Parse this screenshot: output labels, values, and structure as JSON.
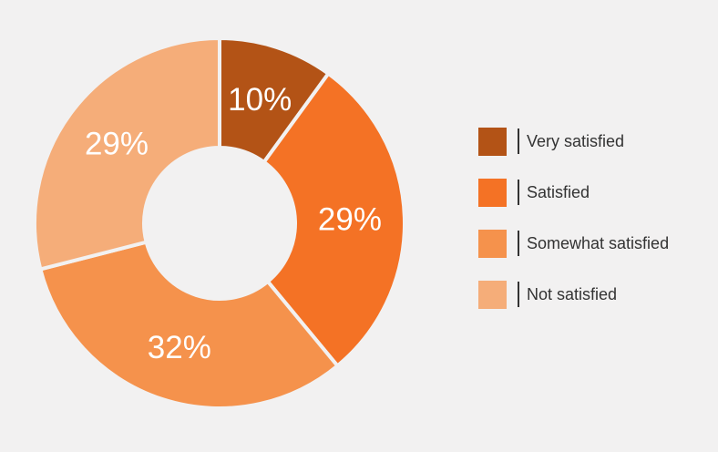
{
  "chart_data": {
    "type": "pie",
    "variant": "donut",
    "categories": [
      "Very satisfied",
      "Satisfied",
      "Somewhat satisfied",
      "Not satisfied"
    ],
    "values": [
      10,
      29,
      32,
      29
    ],
    "labels": [
      "10%",
      "29%",
      "32%",
      "29%"
    ],
    "colors": [
      "#b35316",
      "#f47225",
      "#f5924c",
      "#f5ad79"
    ],
    "legend_position": "right"
  },
  "legend": {
    "items": [
      {
        "label": "Very satisfied",
        "color": "#b35316"
      },
      {
        "label": "Satisfied",
        "color": "#f47225"
      },
      {
        "label": "Somewhat satisfied",
        "color": "#f5924c"
      },
      {
        "label": "Not satisfied",
        "color": "#f5ad79"
      }
    ]
  }
}
